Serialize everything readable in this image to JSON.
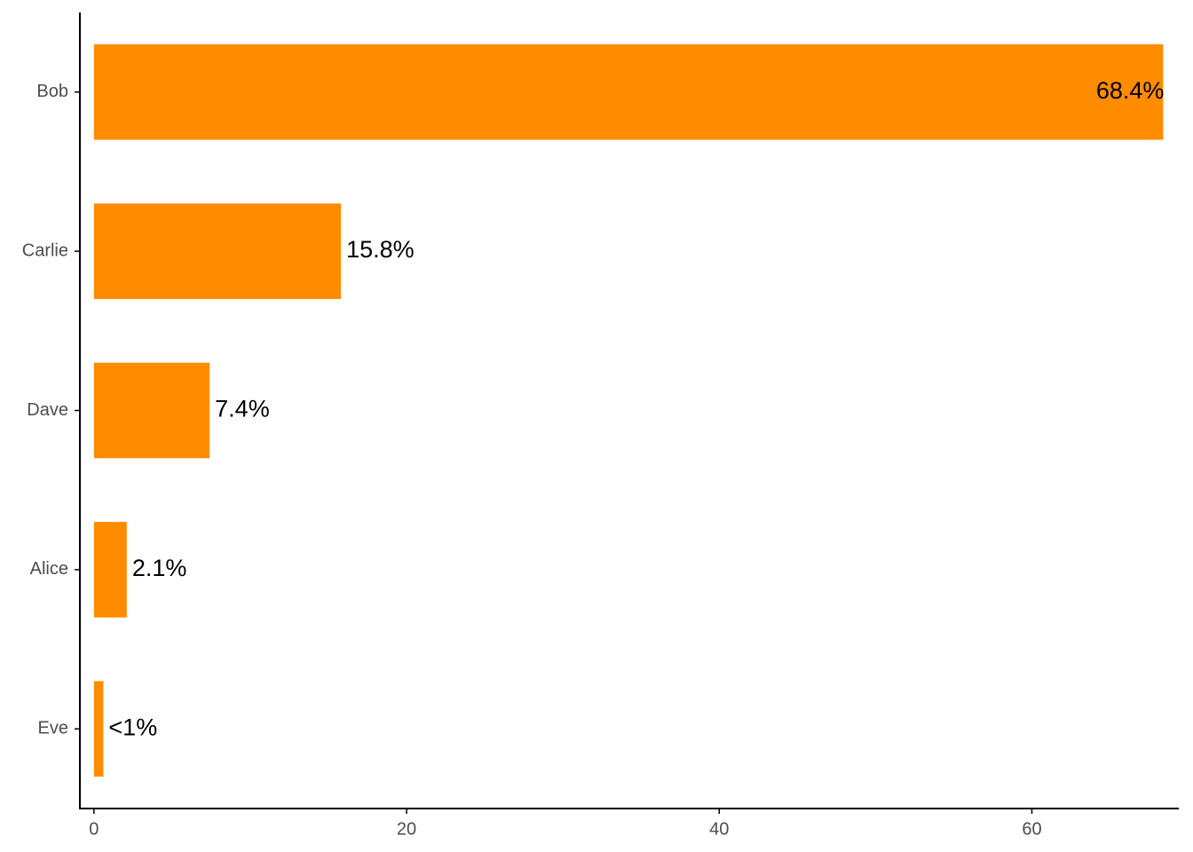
{
  "chart_data": {
    "type": "bar",
    "orientation": "horizontal",
    "categories": [
      "Bob",
      "Carlie",
      "Dave",
      "Alice",
      "Eve"
    ],
    "values": [
      68.4,
      15.8,
      7.4,
      2.1,
      0.6
    ],
    "value_labels": [
      "68.4%",
      "15.8%",
      "7.4%",
      "2.1%",
      "<1%"
    ],
    "color": "#ff8c00",
    "xlim": [
      -0.9,
      69.4
    ],
    "xticks": [
      0,
      20,
      40,
      60
    ],
    "grid": false
  }
}
